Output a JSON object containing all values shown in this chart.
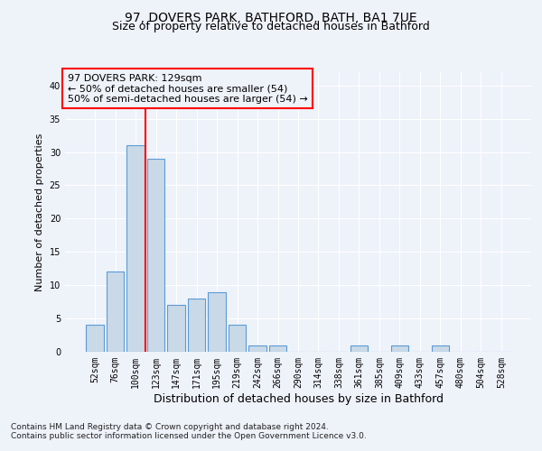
{
  "title1": "97, DOVERS PARK, BATHFORD, BATH, BA1 7UE",
  "title2": "Size of property relative to detached houses in Bathford",
  "xlabel": "Distribution of detached houses by size in Bathford",
  "ylabel": "Number of detached properties",
  "categories": [
    "52sqm",
    "76sqm",
    "100sqm",
    "123sqm",
    "147sqm",
    "171sqm",
    "195sqm",
    "219sqm",
    "242sqm",
    "266sqm",
    "290sqm",
    "314sqm",
    "338sqm",
    "361sqm",
    "385sqm",
    "409sqm",
    "433sqm",
    "457sqm",
    "480sqm",
    "504sqm",
    "528sqm"
  ],
  "values": [
    4,
    12,
    31,
    29,
    7,
    8,
    9,
    4,
    1,
    1,
    0,
    0,
    0,
    1,
    0,
    1,
    0,
    1,
    0,
    0,
    0
  ],
  "bar_color": "#c9d9e8",
  "bar_edge_color": "#5b9bd5",
  "vline_color": "red",
  "annotation_line1": "97 DOVERS PARK: 129sqm",
  "annotation_line2": "← 50% of detached houses are smaller (54)",
  "annotation_line3": "50% of semi-detached houses are larger (54) →",
  "annotation_box_color": "red",
  "ylim": [
    0,
    42
  ],
  "yticks": [
    0,
    5,
    10,
    15,
    20,
    25,
    30,
    35,
    40
  ],
  "footnote1": "Contains HM Land Registry data © Crown copyright and database right 2024.",
  "footnote2": "Contains public sector information licensed under the Open Government Licence v3.0.",
  "bg_color": "#eef2f9",
  "grid_color": "#ffffff",
  "title1_fontsize": 10,
  "title2_fontsize": 9,
  "xlabel_fontsize": 9,
  "ylabel_fontsize": 8,
  "tick_fontsize": 7,
  "footnote_fontsize": 6.5,
  "ann_fontsize": 8
}
